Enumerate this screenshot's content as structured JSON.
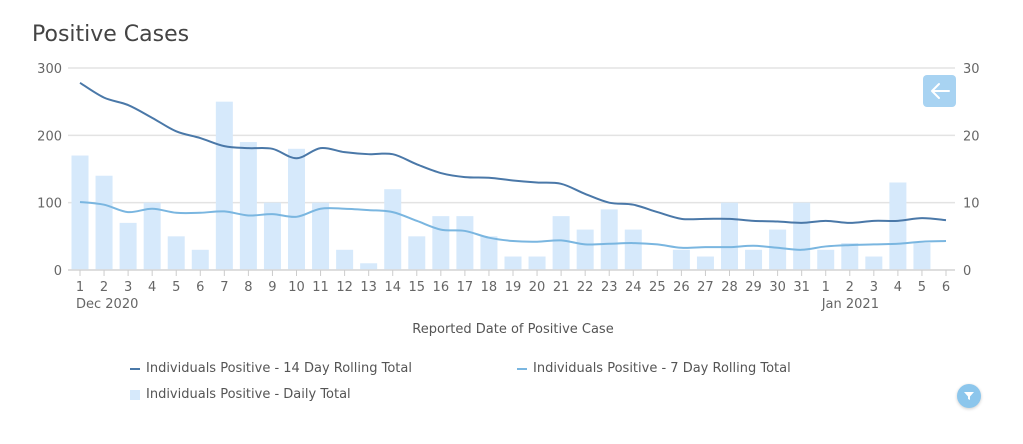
{
  "chart_data": {
    "type": "bar+line",
    "title": "Positive Cases",
    "xlabel": "Reported Date of Positive Case",
    "ylabel_left": "",
    "ylabel_right": "",
    "categories": [
      "1",
      "2",
      "3",
      "4",
      "5",
      "6",
      "7",
      "8",
      "9",
      "10",
      "11",
      "12",
      "13",
      "14",
      "15",
      "16",
      "17",
      "18",
      "19",
      "20",
      "21",
      "22",
      "23",
      "24",
      "25",
      "26",
      "27",
      "28",
      "29",
      "30",
      "31",
      "1",
      "2",
      "3",
      "4",
      "5",
      "6"
    ],
    "month_labels": [
      {
        "index": 0,
        "label": "Dec 2020"
      },
      {
        "index": 31,
        "label": "Jan 2021"
      }
    ],
    "ylim_left": [
      0,
      300
    ],
    "ylim_right": [
      0,
      30
    ],
    "yticks_left": [
      "0",
      "100",
      "200",
      "300"
    ],
    "yticks_right": [
      "0",
      "10",
      "20",
      "30"
    ],
    "grid": true,
    "legend_position": "bottom",
    "series": [
      {
        "name": "Individuals Positive - 14 Day Rolling Total",
        "type": "line",
        "axis": "left",
        "color": "#4a78a8",
        "values": [
          278,
          256,
          245,
          226,
          206,
          196,
          184,
          181,
          180,
          166,
          181,
          175,
          172,
          172,
          157,
          144,
          138,
          137,
          133,
          130,
          128,
          113,
          100,
          97,
          86,
          76,
          76,
          76,
          73,
          72,
          70,
          73,
          70,
          73,
          73,
          77,
          74
        ]
      },
      {
        "name": "Individuals Positive - 7 Day Rolling Total",
        "type": "line",
        "axis": "left",
        "color": "#7ab6e0",
        "values": [
          101,
          97,
          86,
          91,
          85,
          85,
          87,
          81,
          83,
          79,
          91,
          91,
          89,
          86,
          73,
          60,
          58,
          48,
          43,
          42,
          44,
          38,
          39,
          40,
          38,
          33,
          34,
          34,
          36,
          33,
          30,
          35,
          37,
          38,
          39,
          42,
          43
        ]
      },
      {
        "name": "Individuals Positive - Daily Total",
        "type": "bar",
        "axis": "right",
        "color": "#d6e9fb",
        "values": [
          17,
          14,
          7,
          10,
          5,
          3,
          25,
          19,
          10,
          18,
          10,
          3,
          1,
          12,
          5,
          8,
          8,
          5,
          2,
          2,
          8,
          6,
          9,
          6,
          0,
          3,
          2,
          10,
          3,
          6,
          10,
          3,
          4,
          2,
          13,
          4,
          0
        ]
      }
    ]
  },
  "controls": {
    "back_icon": "arrow-left-icon",
    "filter_icon": "filter-icon"
  },
  "colors": {
    "bar": "#d6e9fb",
    "line14": "#4a78a8",
    "line7": "#7ab6e0",
    "grid": "#e3e3e3",
    "button": "#a8d3f2"
  }
}
